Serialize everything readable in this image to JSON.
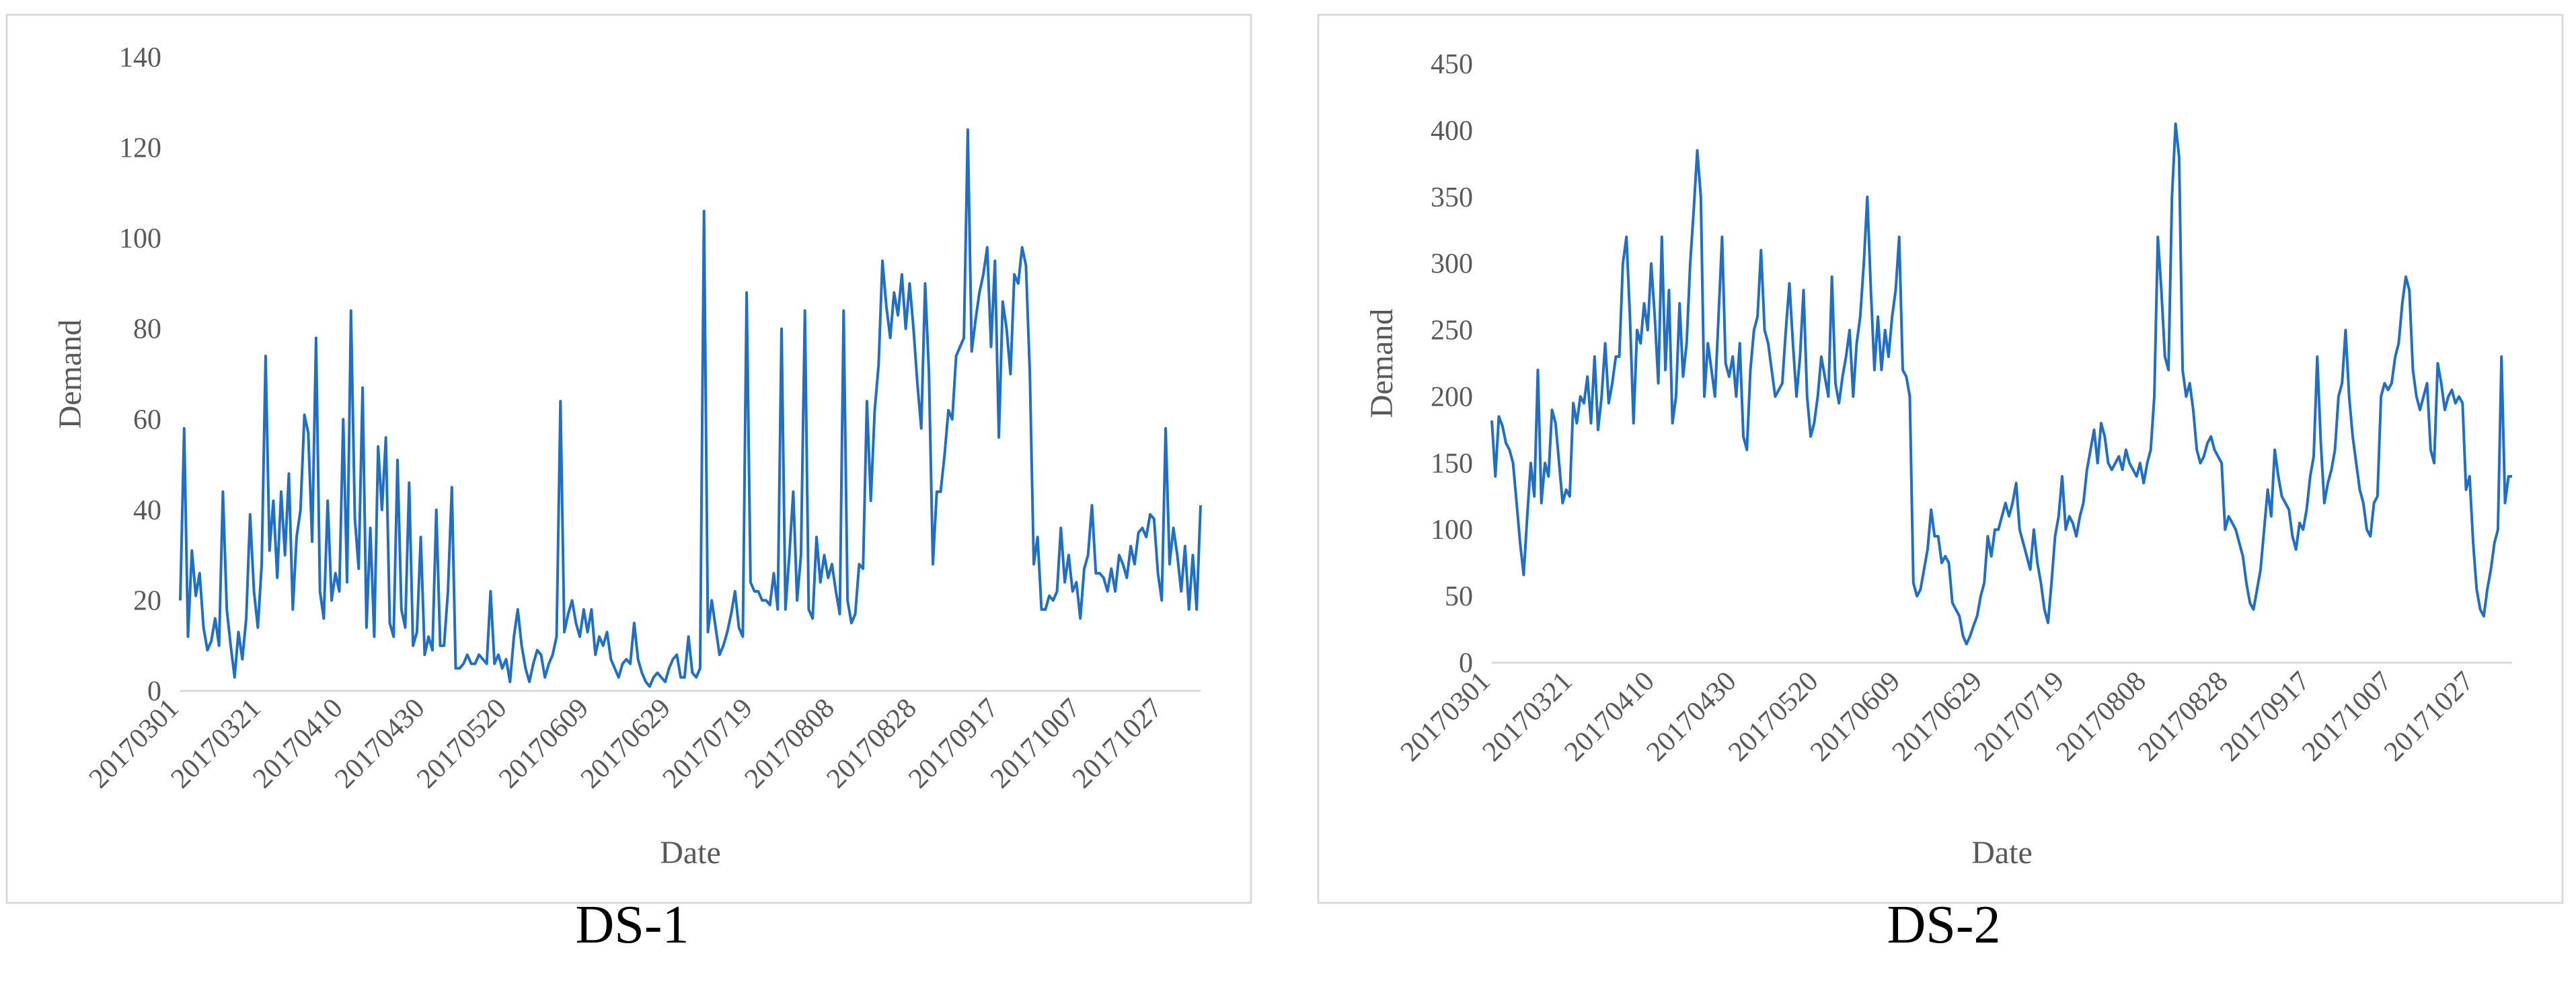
{
  "colors": {
    "series": "#1f6fc5",
    "frame": "#d9d9d9",
    "text": "#595959"
  },
  "panels": [
    {
      "caption": "DS-1"
    },
    {
      "caption": "DS-2"
    }
  ],
  "chart_data": [
    {
      "type": "line",
      "xlabel": "Date",
      "ylabel": "Demand",
      "ylim": [
        0,
        140
      ],
      "yticks": [
        0,
        20,
        40,
        60,
        80,
        100,
        120,
        140
      ],
      "xtick_labels": [
        "20170301",
        "20170321",
        "20170410",
        "20170430",
        "20170520",
        "20170609",
        "20170629",
        "20170719",
        "20170808",
        "20170828",
        "20170917",
        "20171007",
        "20171027"
      ],
      "x_range": [
        "20170301",
        "20171105"
      ],
      "grid": false,
      "series": [
        {
          "color": "#1f6fc5",
          "values": [
            20,
            58,
            12,
            31,
            21,
            26,
            14,
            9,
            11,
            16,
            10,
            44,
            18,
            10,
            3,
            13,
            7,
            16,
            39,
            22,
            14,
            28,
            74,
            31,
            42,
            25,
            44,
            30,
            48,
            18,
            34,
            40,
            61,
            57,
            33,
            78,
            22,
            16,
            42,
            20,
            26,
            22,
            60,
            24,
            84,
            38,
            27,
            67,
            14,
            36,
            12,
            54,
            40,
            56,
            15,
            12,
            51,
            18,
            14,
            46,
            10,
            13,
            34,
            8,
            12,
            9,
            40,
            10,
            10,
            22,
            45,
            5,
            5,
            6,
            8,
            6,
            6,
            8,
            7,
            6,
            22,
            6,
            8,
            5,
            7,
            2,
            12,
            18,
            10,
            5,
            2,
            6,
            9,
            8,
            3,
            6,
            8,
            12,
            64,
            13,
            17,
            20,
            15,
            12,
            18,
            13,
            18,
            8,
            12,
            10,
            13,
            7,
            5,
            3,
            6,
            7,
            6,
            15,
            7,
            4,
            2,
            1,
            3,
            4,
            3,
            2,
            5,
            7,
            8,
            3,
            3,
            12,
            4,
            3,
            5,
            106,
            13,
            20,
            14,
            8,
            10,
            13,
            17,
            22,
            14,
            12,
            88,
            24,
            22,
            22,
            20,
            20,
            19,
            26,
            18,
            80,
            18,
            30,
            44,
            20,
            30,
            84,
            18,
            16,
            34,
            24,
            30,
            25,
            28,
            22,
            17,
            84,
            20,
            15,
            17,
            28,
            27,
            64,
            42,
            62,
            72,
            95,
            85,
            78,
            88,
            83,
            92,
            80,
            90,
            80,
            68,
            58,
            90,
            70,
            28,
            44,
            44,
            52,
            62,
            60,
            74,
            76,
            78,
            124,
            75,
            82,
            88,
            92,
            98,
            76,
            95,
            56,
            86,
            80,
            70,
            92,
            90,
            98,
            94,
            70,
            28,
            34,
            18,
            18,
            21,
            20,
            22,
            36,
            24,
            30,
            22,
            24,
            16,
            27,
            30,
            41,
            26,
            26,
            25,
            22,
            27,
            22,
            30,
            28,
            25,
            32,
            28,
            35,
            36,
            34,
            39,
            38,
            26,
            20,
            58,
            28,
            36,
            30,
            22,
            32,
            18,
            30,
            18,
            41
          ]
        }
      ]
    },
    {
      "type": "line",
      "xlabel": "Date",
      "ylabel": "Demand",
      "ylim": [
        0,
        450
      ],
      "yticks": [
        0,
        50,
        100,
        150,
        200,
        250,
        300,
        350,
        400,
        450
      ],
      "xtick_labels": [
        "20170301",
        "20170321",
        "20170410",
        "20170430",
        "20170520",
        "20170609",
        "20170629",
        "20170719",
        "20170808",
        "20170828",
        "20170917",
        "20171007",
        "20171027"
      ],
      "x_range": [
        "20170301",
        "20171105"
      ],
      "grid": false,
      "series": [
        {
          "color": "#1f6fc5",
          "values": [
            182,
            140,
            185,
            178,
            165,
            160,
            150,
            120,
            90,
            66,
            110,
            150,
            125,
            220,
            120,
            150,
            140,
            190,
            180,
            150,
            120,
            130,
            125,
            195,
            180,
            200,
            195,
            215,
            180,
            230,
            175,
            200,
            240,
            195,
            210,
            230,
            230,
            300,
            320,
            260,
            180,
            250,
            240,
            270,
            250,
            300,
            260,
            210,
            320,
            220,
            280,
            180,
            200,
            270,
            215,
            240,
            300,
            340,
            385,
            350,
            200,
            240,
            220,
            200,
            260,
            320,
            225,
            215,
            230,
            200,
            240,
            170,
            160,
            220,
            250,
            260,
            310,
            250,
            240,
            220,
            200,
            205,
            210,
            250,
            285,
            240,
            200,
            230,
            280,
            200,
            170,
            180,
            200,
            230,
            215,
            200,
            290,
            210,
            195,
            215,
            230,
            250,
            200,
            240,
            260,
            300,
            350,
            280,
            220,
            260,
            220,
            250,
            230,
            260,
            280,
            320,
            220,
            215,
            200,
            60,
            50,
            55,
            70,
            85,
            115,
            95,
            95,
            75,
            80,
            75,
            45,
            40,
            35,
            20,
            14,
            20,
            28,
            35,
            50,
            60,
            95,
            80,
            100,
            100,
            110,
            120,
            110,
            120,
            135,
            100,
            90,
            80,
            70,
            100,
            75,
            60,
            40,
            30,
            60,
            95,
            110,
            140,
            100,
            110,
            105,
            95,
            110,
            120,
            145,
            160,
            175,
            150,
            180,
            170,
            150,
            145,
            150,
            155,
            145,
            160,
            150,
            145,
            140,
            150,
            135,
            150,
            160,
            200,
            320,
            280,
            230,
            220,
            350,
            405,
            380,
            220,
            200,
            210,
            190,
            160,
            150,
            155,
            165,
            170,
            160,
            155,
            150,
            100,
            110,
            105,
            100,
            90,
            80,
            60,
            45,
            40,
            55,
            70,
            100,
            130,
            110,
            160,
            140,
            125,
            120,
            115,
            95,
            85,
            105,
            100,
            115,
            140,
            155,
            230,
            165,
            120,
            135,
            145,
            160,
            200,
            210,
            250,
            200,
            170,
            150,
            130,
            120,
            100,
            95,
            120,
            125,
            200,
            210,
            205,
            210,
            230,
            240,
            270,
            290,
            280,
            220,
            200,
            190,
            200,
            210,
            160,
            150,
            225,
            210,
            190,
            200,
            205,
            195,
            200,
            195,
            130,
            140,
            90,
            55,
            40,
            35,
            55,
            70,
            90,
            100,
            230,
            120,
            140,
            140
          ]
        }
      ]
    }
  ]
}
